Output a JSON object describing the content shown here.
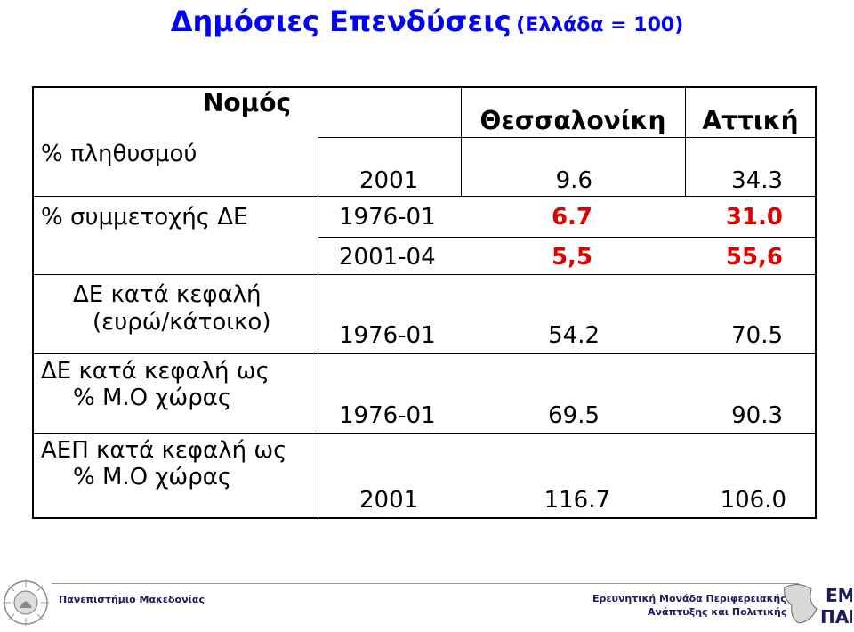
{
  "title": {
    "main": "Δημόσιες Επενδύσεις",
    "sub": "(Ελλάδα = 100)"
  },
  "table": {
    "header": {
      "region_label": "Νομός",
      "col1": "Θεσσαλονίκη",
      "col2": "Αττική"
    },
    "rows": [
      {
        "label": "% πληθυσμού",
        "period": "2001",
        "thessaloniki": "9.6",
        "attiki": "34.3",
        "highlight": false
      },
      {
        "label": "% συμμετοχής ΔΕ",
        "period": "1976-01",
        "thessaloniki": "6.7",
        "attiki": "31.0",
        "highlight": true
      },
      {
        "label": "",
        "period": "2001-04",
        "thessaloniki": "5,5",
        "attiki": "55,6",
        "highlight": true
      },
      {
        "label_line1": "ΔΕ κατά κεφαλή",
        "label_line2": "(ευρώ/κάτοικο)",
        "period": "1976-01",
        "thessaloniki": "54.2",
        "attiki": "70.5",
        "highlight": false
      },
      {
        "label_line1": "ΔΕ κατά κεφαλή ως",
        "label_line2": "% Μ.Ο χώρας",
        "period": "1976-01",
        "thessaloniki": "69.5",
        "attiki": "90.3",
        "highlight": false
      },
      {
        "label_line1": "ΑΕΠ κατά κεφαλή ως",
        "label_line2": "% Μ.Ο χώρας",
        "period": "2001",
        "thessaloniki": "116.7",
        "attiki": "106.0",
        "highlight": false
      }
    ]
  },
  "footer": {
    "left_text": "Πανεπιστήμιο Μακεδονίας",
    "right_text_line1": "Ερευνητική Μονάδα Περιφερειακής",
    "right_text_line2": "Ανάπτυξης και Πολιτικής",
    "logo_right_line1": "ΕΜ",
    "logo_right_line2": "ΠΑΠ"
  },
  "colors": {
    "title": "#0000ff",
    "highlight": "#e00000"
  }
}
